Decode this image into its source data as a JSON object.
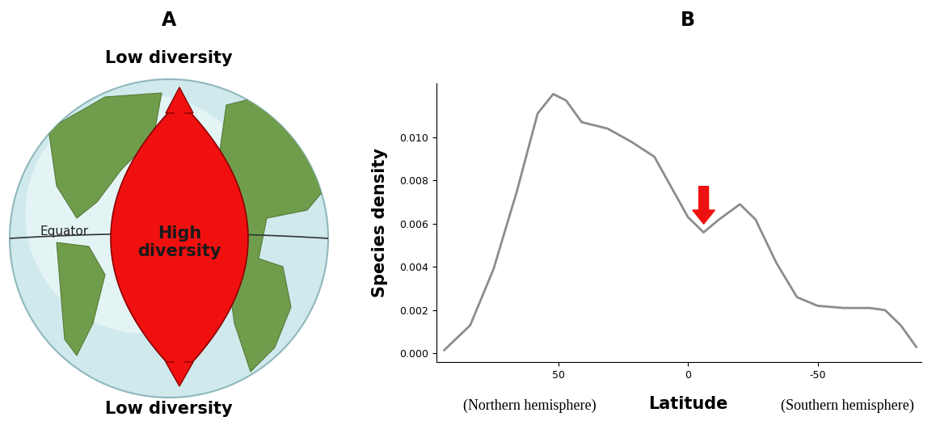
{
  "diagram": {
    "label": "A",
    "top_text": "Low diversity",
    "bottom_text": "Low diversity",
    "center_text": "High\ndiversity",
    "equator_label": "Equator"
  },
  "chart_data": {
    "type": "line",
    "title": "B",
    "xlabel": "Latitude",
    "ylabel": "Species density",
    "annotations": [
      "(Northern hemisphere)",
      "(Southern hemisphere)"
    ],
    "x": [
      94,
      84,
      75,
      66,
      58,
      52,
      47,
      41,
      31,
      22,
      13,
      6.5,
      0,
      -6,
      -12,
      -20,
      -26,
      -34,
      -42,
      -50,
      -60,
      -70,
      -76,
      -82,
      -88
    ],
    "values": [
      0.00015,
      0.0013,
      0.0039,
      0.0075,
      0.0111,
      0.012,
      0.0117,
      0.0107,
      0.0104,
      0.0098,
      0.0091,
      0.0077,
      0.0063,
      0.0056,
      0.0062,
      0.0069,
      0.0062,
      0.0042,
      0.0026,
      0.0022,
      0.0021,
      0.0021,
      0.002,
      0.0013,
      0.0003
    ],
    "color": "#8c8c8c",
    "xlim": [
      97,
      -90
    ],
    "ylim": [
      -0.0004,
      0.0125
    ],
    "xticks": [
      50,
      0,
      -50
    ],
    "yticks": [
      {
        "value": 0.0,
        "label": "0.000"
      },
      {
        "value": 0.002,
        "label": "0.002"
      },
      {
        "value": 0.004,
        "label": "0.004"
      },
      {
        "value": 0.006,
        "label": "0.006"
      },
      {
        "value": 0.008,
        "label": "0.008"
      },
      {
        "value": 0.01,
        "label": "0.010"
      }
    ]
  }
}
